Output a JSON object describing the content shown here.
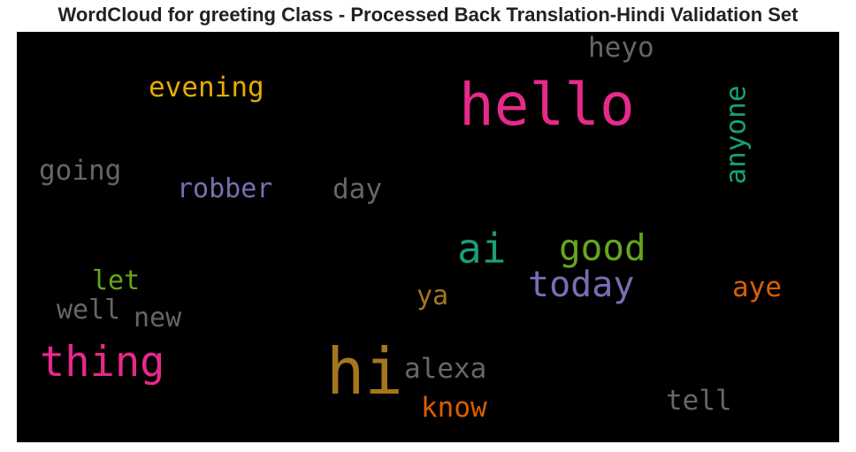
{
  "title": "WordCloud for greeting Class - Processed Back Translation-Hindi Validation Set",
  "chart_data": {
    "type": "wordcloud",
    "background": "#000000",
    "words": [
      {
        "text": "hello",
        "color": "#e7298a",
        "weight": 1.0,
        "orientation": "horizontal"
      },
      {
        "text": "hi",
        "color": "#a6761d",
        "weight": 0.98,
        "orientation": "horizontal"
      },
      {
        "text": "thing",
        "color": "#e7298a",
        "weight": 0.72,
        "orientation": "horizontal"
      },
      {
        "text": "ai",
        "color": "#1b9e77",
        "weight": 0.64,
        "orientation": "horizontal"
      },
      {
        "text": "good",
        "color": "#66a61e",
        "weight": 0.64,
        "orientation": "horizontal"
      },
      {
        "text": "today",
        "color": "#7570b3",
        "weight": 0.62,
        "orientation": "horizontal"
      },
      {
        "text": "anyone",
        "color": "#1b9e77",
        "weight": 0.5,
        "orientation": "vertical"
      },
      {
        "text": "evening",
        "color": "#e6ab02",
        "weight": 0.5,
        "orientation": "horizontal"
      },
      {
        "text": "going",
        "color": "#666666",
        "weight": 0.5,
        "orientation": "horizontal"
      },
      {
        "text": "robber",
        "color": "#7570b3",
        "weight": 0.48,
        "orientation": "horizontal"
      },
      {
        "text": "day",
        "color": "#666666",
        "weight": 0.48,
        "orientation": "horizontal"
      },
      {
        "text": "heyo",
        "color": "#666666",
        "weight": 0.5,
        "orientation": "horizontal"
      },
      {
        "text": "alexa",
        "color": "#666666",
        "weight": 0.5,
        "orientation": "horizontal"
      },
      {
        "text": "know",
        "color": "#d95f02",
        "weight": 0.5,
        "orientation": "horizontal"
      },
      {
        "text": "tell",
        "color": "#666666",
        "weight": 0.5,
        "orientation": "horizontal"
      },
      {
        "text": "aye",
        "color": "#d95f02",
        "weight": 0.48,
        "orientation": "horizontal"
      },
      {
        "text": "let",
        "color": "#66a61e",
        "weight": 0.48,
        "orientation": "horizontal"
      },
      {
        "text": "well",
        "color": "#666666",
        "weight": 0.48,
        "orientation": "horizontal"
      },
      {
        "text": "new",
        "color": "#666666",
        "weight": 0.48,
        "orientation": "horizontal"
      },
      {
        "text": "ya",
        "color": "#a6761d",
        "weight": 0.46,
        "orientation": "horizontal"
      }
    ]
  }
}
